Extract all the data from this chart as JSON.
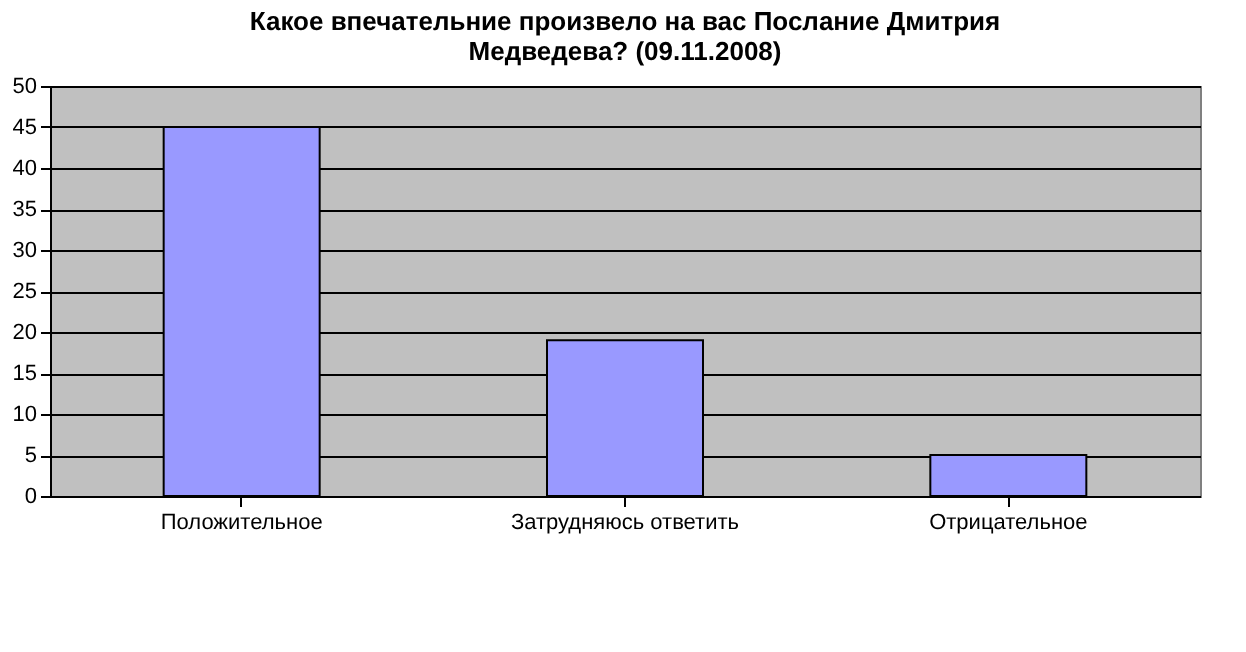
{
  "chart_data": {
    "type": "bar",
    "title": "Какое впечательние произвело на вас Послание Дмитрия Медведева? (09.11.2008)",
    "categories": [
      "Положительное",
      "Затрудняюсь ответить",
      "Отрицательное"
    ],
    "values": [
      45,
      19,
      5
    ],
    "color": "#9999ff",
    "ylim": [
      0,
      50
    ],
    "yticks": [
      0,
      5,
      10,
      15,
      20,
      25,
      30,
      35,
      40,
      45,
      50
    ],
    "grid": "y"
  }
}
